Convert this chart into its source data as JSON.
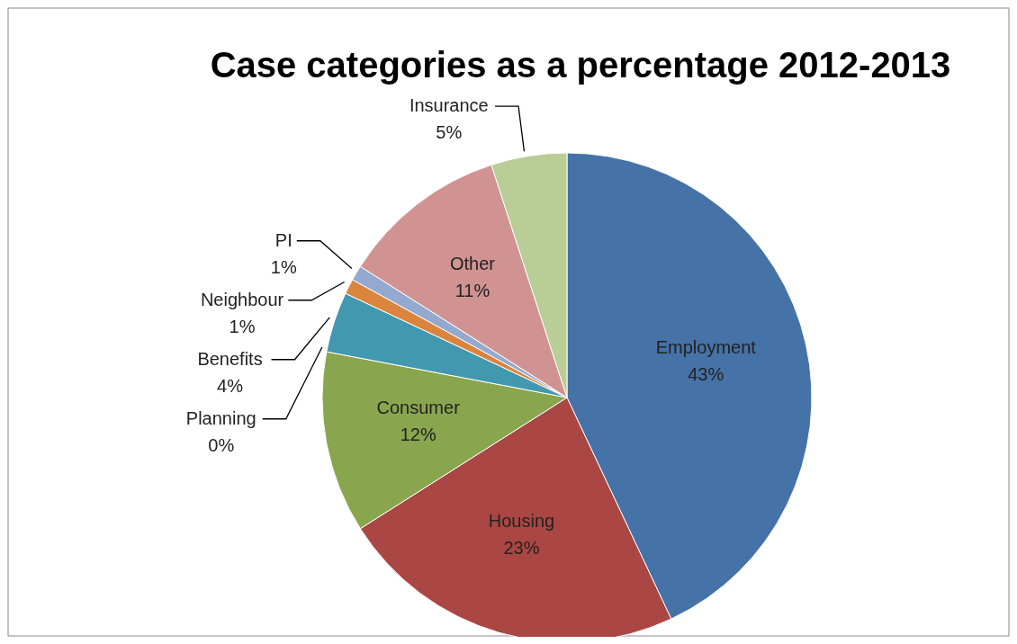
{
  "chart_data": {
    "type": "pie",
    "title": "Case categories as a percentage 2012-2013",
    "categories": [
      "Employment",
      "Housing",
      "Consumer",
      "Planning",
      "Benefits",
      "Neighbour",
      "PI",
      "Other",
      "Insurance"
    ],
    "values": [
      43,
      23,
      12,
      0,
      4,
      1,
      1,
      11,
      5
    ],
    "value_labels": [
      "43%",
      "23%",
      "12%",
      "0%",
      "4%",
      "1%",
      "1%",
      "11%",
      "5%"
    ],
    "colors": [
      "#4572a7",
      "#aa4643",
      "#89a54e",
      "#71588f",
      "#4198af",
      "#db843d",
      "#93a9cf",
      "#d19392",
      "#b9cd96"
    ]
  }
}
